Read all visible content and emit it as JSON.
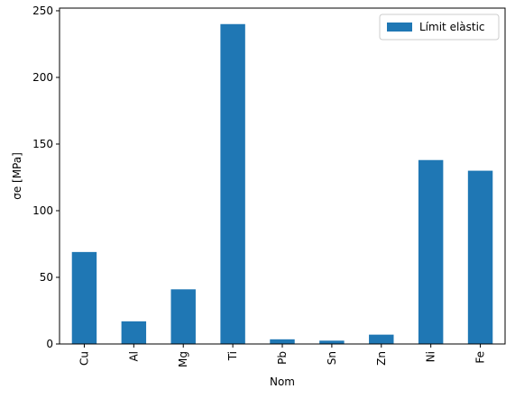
{
  "chart_data": {
    "type": "bar",
    "xlabel": "Nom",
    "ylabel": "σe [MPa]",
    "categories": [
      "Cu",
      "Al",
      "Mg",
      "Ti",
      "Pb",
      "Sn",
      "Zn",
      "Ni",
      "Fe"
    ],
    "series": [
      {
        "name": "Límit elàstic",
        "color": "#1f77b4",
        "values": [
          69,
          17,
          41,
          240,
          3.5,
          2.5,
          7,
          138,
          130
        ]
      }
    ],
    "ylim": [
      0,
      252
    ],
    "yticks": [
      0,
      50,
      100,
      150,
      200,
      250
    ],
    "grid": false,
    "legend_position": "top-right",
    "x_tick_rotation": 90
  }
}
